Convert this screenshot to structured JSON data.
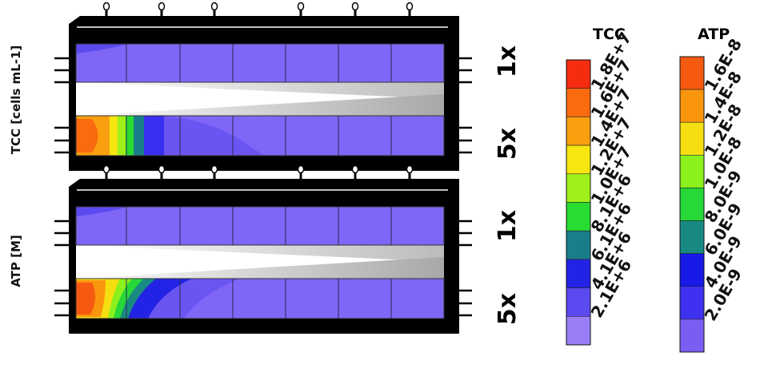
{
  "panels": [
    {
      "id": "tcc",
      "ylabel": "TCC [cells mL-1]",
      "rows": [
        "1x",
        "5x"
      ]
    },
    {
      "id": "atp",
      "ylabel": "ATP [M]",
      "rows": [
        "1x",
        "5x"
      ]
    }
  ],
  "legends": [
    {
      "title": "TCC",
      "colors": [
        "#f52c10",
        "#fa6a0e",
        "#fa9f0e",
        "#f7e610",
        "#9ef01a",
        "#28dc32",
        "#1a7e8a",
        "#2323e6",
        "#5a4af0",
        "#9a7ef8"
      ],
      "labels": [
        "1.8E+7",
        "1.6E+7",
        "1.4E+7",
        "1.2E+7",
        "1.0E+7",
        "8.1E+6",
        "6.1E+6",
        "4.1E+6",
        "2.1E+6"
      ]
    },
    {
      "title": "ATP",
      "colors": [
        "#f55a10",
        "#fa960e",
        "#f6df10",
        "#8cf01c",
        "#26d838",
        "#198a82",
        "#1818e8",
        "#3e32f0",
        "#7a5ef4"
      ],
      "labels": [
        "1.6E-8",
        "1.4E-8",
        "1.2E-8",
        "1.0E-8",
        "8.0E-9",
        "6.0E-9",
        "4.0E-9",
        "2.0E-9"
      ]
    }
  ],
  "colors": {
    "base_fill": "#7f66f6",
    "frame": "#000000",
    "gradient_high": "#bfbfbf"
  }
}
